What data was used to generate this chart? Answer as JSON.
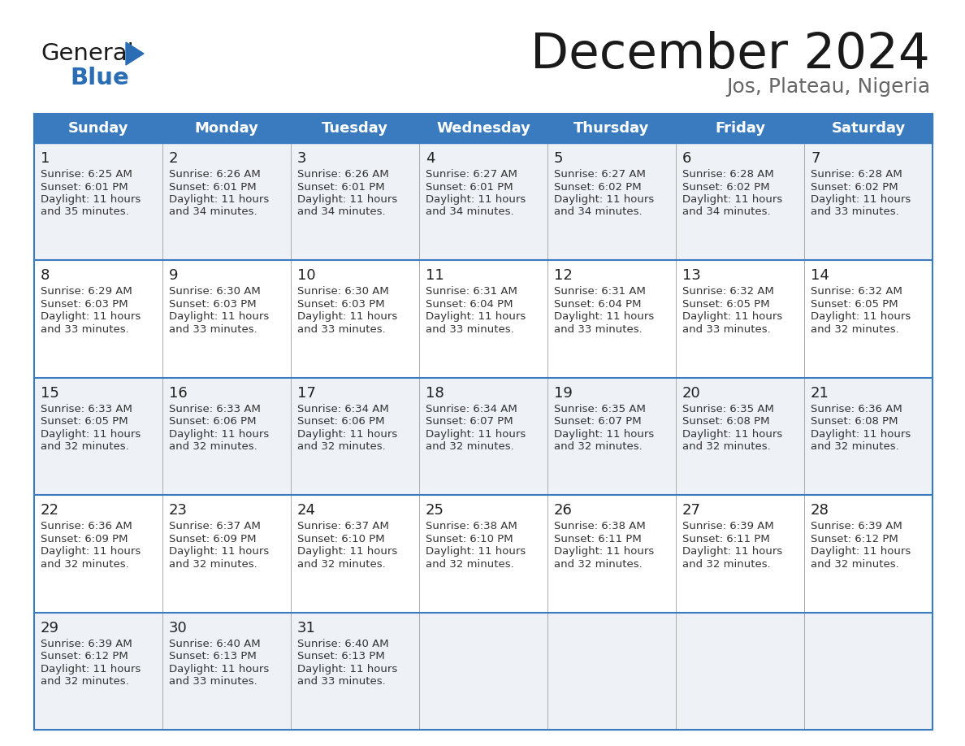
{
  "title": "December 2024",
  "subtitle": "Jos, Plateau, Nigeria",
  "header_color": "#3a7bbf",
  "header_text_color": "#ffffff",
  "cell_bg_even": "#eef2f7",
  "cell_bg_odd": "#ffffff",
  "border_color": "#3a7bbf",
  "text_color": "#333333",
  "day_num_color": "#222222",
  "day_headers": [
    "Sunday",
    "Monday",
    "Tuesday",
    "Wednesday",
    "Thursday",
    "Friday",
    "Saturday"
  ],
  "weeks": [
    [
      {
        "day": 1,
        "sunrise": "6:25 AM",
        "sunset": "6:01 PM",
        "daylight": "11 hours and 35 minutes."
      },
      {
        "day": 2,
        "sunrise": "6:26 AM",
        "sunset": "6:01 PM",
        "daylight": "11 hours and 34 minutes."
      },
      {
        "day": 3,
        "sunrise": "6:26 AM",
        "sunset": "6:01 PM",
        "daylight": "11 hours and 34 minutes."
      },
      {
        "day": 4,
        "sunrise": "6:27 AM",
        "sunset": "6:01 PM",
        "daylight": "11 hours and 34 minutes."
      },
      {
        "day": 5,
        "sunrise": "6:27 AM",
        "sunset": "6:02 PM",
        "daylight": "11 hours and 34 minutes."
      },
      {
        "day": 6,
        "sunrise": "6:28 AM",
        "sunset": "6:02 PM",
        "daylight": "11 hours and 34 minutes."
      },
      {
        "day": 7,
        "sunrise": "6:28 AM",
        "sunset": "6:02 PM",
        "daylight": "11 hours and 33 minutes."
      }
    ],
    [
      {
        "day": 8,
        "sunrise": "6:29 AM",
        "sunset": "6:03 PM",
        "daylight": "11 hours and 33 minutes."
      },
      {
        "day": 9,
        "sunrise": "6:30 AM",
        "sunset": "6:03 PM",
        "daylight": "11 hours and 33 minutes."
      },
      {
        "day": 10,
        "sunrise": "6:30 AM",
        "sunset": "6:03 PM",
        "daylight": "11 hours and 33 minutes."
      },
      {
        "day": 11,
        "sunrise": "6:31 AM",
        "sunset": "6:04 PM",
        "daylight": "11 hours and 33 minutes."
      },
      {
        "day": 12,
        "sunrise": "6:31 AM",
        "sunset": "6:04 PM",
        "daylight": "11 hours and 33 minutes."
      },
      {
        "day": 13,
        "sunrise": "6:32 AM",
        "sunset": "6:05 PM",
        "daylight": "11 hours and 33 minutes."
      },
      {
        "day": 14,
        "sunrise": "6:32 AM",
        "sunset": "6:05 PM",
        "daylight": "11 hours and 32 minutes."
      }
    ],
    [
      {
        "day": 15,
        "sunrise": "6:33 AM",
        "sunset": "6:05 PM",
        "daylight": "11 hours and 32 minutes."
      },
      {
        "day": 16,
        "sunrise": "6:33 AM",
        "sunset": "6:06 PM",
        "daylight": "11 hours and 32 minutes."
      },
      {
        "day": 17,
        "sunrise": "6:34 AM",
        "sunset": "6:06 PM",
        "daylight": "11 hours and 32 minutes."
      },
      {
        "day": 18,
        "sunrise": "6:34 AM",
        "sunset": "6:07 PM",
        "daylight": "11 hours and 32 minutes."
      },
      {
        "day": 19,
        "sunrise": "6:35 AM",
        "sunset": "6:07 PM",
        "daylight": "11 hours and 32 minutes."
      },
      {
        "day": 20,
        "sunrise": "6:35 AM",
        "sunset": "6:08 PM",
        "daylight": "11 hours and 32 minutes."
      },
      {
        "day": 21,
        "sunrise": "6:36 AM",
        "sunset": "6:08 PM",
        "daylight": "11 hours and 32 minutes."
      }
    ],
    [
      {
        "day": 22,
        "sunrise": "6:36 AM",
        "sunset": "6:09 PM",
        "daylight": "11 hours and 32 minutes."
      },
      {
        "day": 23,
        "sunrise": "6:37 AM",
        "sunset": "6:09 PM",
        "daylight": "11 hours and 32 minutes."
      },
      {
        "day": 24,
        "sunrise": "6:37 AM",
        "sunset": "6:10 PM",
        "daylight": "11 hours and 32 minutes."
      },
      {
        "day": 25,
        "sunrise": "6:38 AM",
        "sunset": "6:10 PM",
        "daylight": "11 hours and 32 minutes."
      },
      {
        "day": 26,
        "sunrise": "6:38 AM",
        "sunset": "6:11 PM",
        "daylight": "11 hours and 32 minutes."
      },
      {
        "day": 27,
        "sunrise": "6:39 AM",
        "sunset": "6:11 PM",
        "daylight": "11 hours and 32 minutes."
      },
      {
        "day": 28,
        "sunrise": "6:39 AM",
        "sunset": "6:12 PM",
        "daylight": "11 hours and 32 minutes."
      }
    ],
    [
      {
        "day": 29,
        "sunrise": "6:39 AM",
        "sunset": "6:12 PM",
        "daylight": "11 hours and 32 minutes."
      },
      {
        "day": 30,
        "sunrise": "6:40 AM",
        "sunset": "6:13 PM",
        "daylight": "11 hours and 33 minutes."
      },
      {
        "day": 31,
        "sunrise": "6:40 AM",
        "sunset": "6:13 PM",
        "daylight": "11 hours and 33 minutes."
      },
      null,
      null,
      null,
      null
    ]
  ],
  "logo_general_color": "#1a1a1a",
  "logo_blue_color": "#2a6db5",
  "figsize": [
    11.88,
    9.18
  ],
  "dpi": 100
}
